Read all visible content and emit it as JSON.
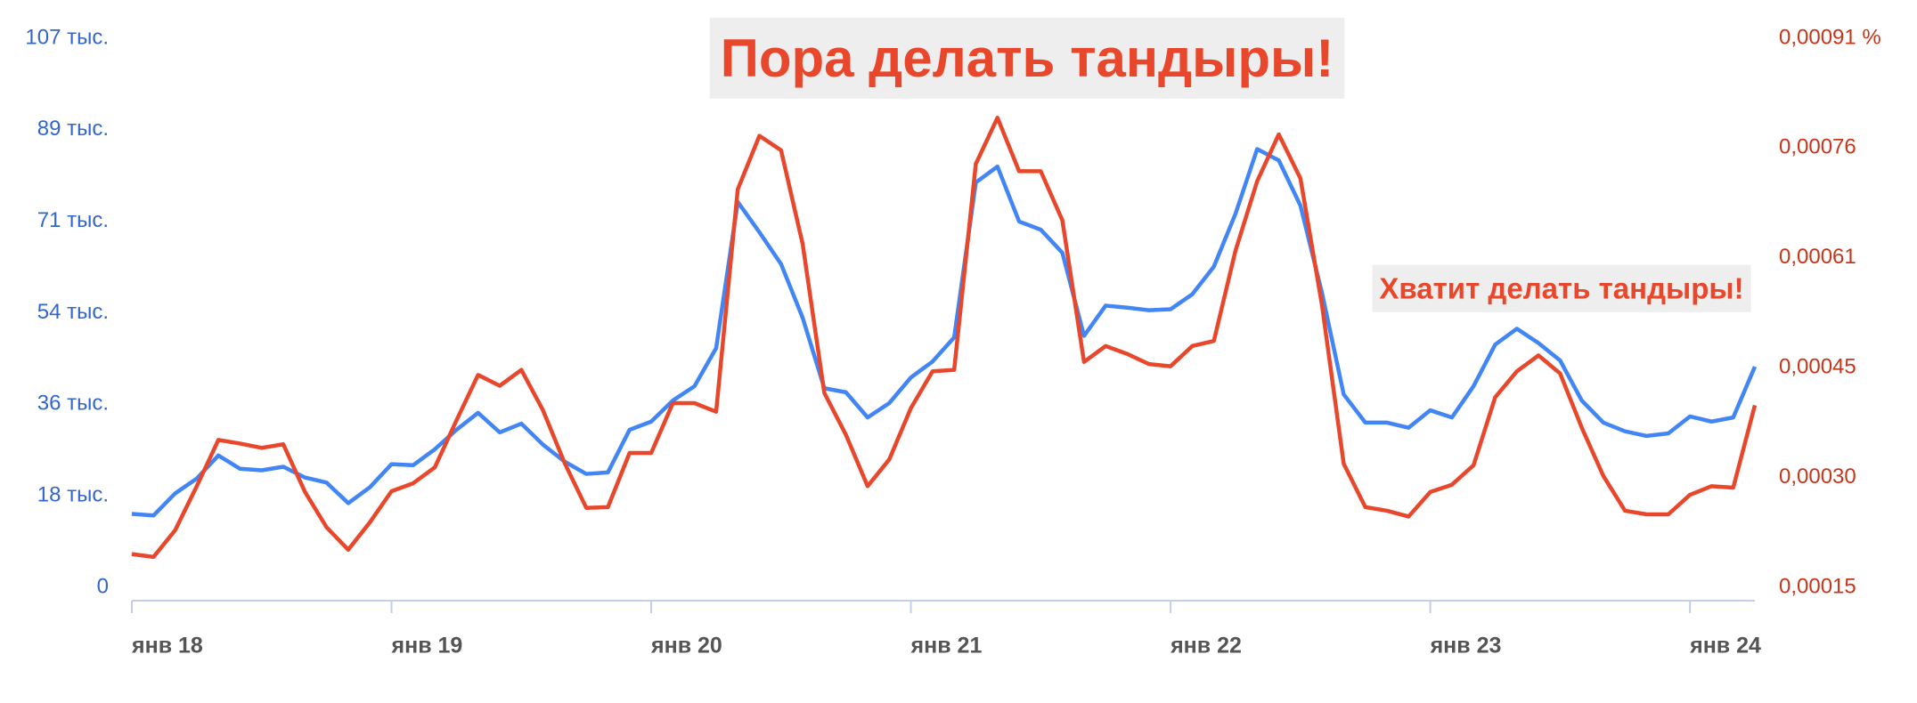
{
  "chart_data": {
    "type": "line",
    "title": "Пора делать тандыры!",
    "annotations": [
      "Хватит делать тандыры!"
    ],
    "x": [
      "2018-01",
      "2018-02",
      "2018-03",
      "2018-04",
      "2018-05",
      "2018-06",
      "2018-07",
      "2018-08",
      "2018-09",
      "2018-10",
      "2018-11",
      "2018-12",
      "2019-01",
      "2019-02",
      "2019-03",
      "2019-04",
      "2019-05",
      "2019-06",
      "2019-07",
      "2019-08",
      "2019-09",
      "2019-10",
      "2019-11",
      "2019-12",
      "2020-01",
      "2020-02",
      "2020-03",
      "2020-04",
      "2020-05",
      "2020-06",
      "2020-07",
      "2020-08",
      "2020-09",
      "2020-10",
      "2020-11",
      "2020-12",
      "2021-01",
      "2021-02",
      "2021-03",
      "2021-04",
      "2021-05",
      "2021-06",
      "2021-07",
      "2021-08",
      "2021-09",
      "2021-10",
      "2021-11",
      "2021-12",
      "2022-01",
      "2022-02",
      "2022-03",
      "2022-04",
      "2022-05",
      "2022-06",
      "2022-07",
      "2022-08",
      "2022-09",
      "2022-10",
      "2022-11",
      "2022-12",
      "2023-01",
      "2023-02",
      "2023-03",
      "2023-04",
      "2023-05",
      "2023-06",
      "2023-07",
      "2023-08",
      "2023-09",
      "2023-10",
      "2023-11",
      "2023-12",
      "2024-01",
      "2024-02",
      "2024-03",
      "2024-04"
    ],
    "xticks": [
      {
        "value": "2018-01",
        "label": "янв 18"
      },
      {
        "value": "2019-01",
        "label": "янв 19"
      },
      {
        "value": "2020-01",
        "label": "янв 20"
      },
      {
        "value": "2021-01",
        "label": "янв 21"
      },
      {
        "value": "2022-01",
        "label": "янв 22"
      },
      {
        "value": "2023-01",
        "label": "янв 23"
      },
      {
        "value": "2024-01",
        "label": "янв 24"
      }
    ],
    "ylim": [
      0,
      107000
    ],
    "yticks": [
      0,
      {
        "value": 17800,
        "label": "18 тыс."
      },
      {
        "value": 35700,
        "label": "36 тыс."
      },
      {
        "value": 53500,
        "label": "54 тыс."
      },
      {
        "value": 71300,
        "label": "71 тыс."
      },
      {
        "value": 89200,
        "label": "89 тыс."
      },
      {
        "value": 107000,
        "label": "107 тыс."
      }
    ],
    "y2lim": [
      0.00015,
      0.00091
    ],
    "y2ticks": [
      {
        "value": 0.00015,
        "label": "0,00015"
      },
      {
        "value": 0.000302,
        "label": "0,00030"
      },
      {
        "value": 0.000454,
        "label": "0,00045"
      },
      {
        "value": 0.000606,
        "label": "0,00061"
      },
      {
        "value": 0.000758,
        "label": "0,00076"
      },
      {
        "value": 0.00091,
        "label": "0,00091 %"
      }
    ],
    "series": [
      {
        "color": "#4285f4",
        "values": [
          14300,
          14000,
          18300,
          21200,
          25700,
          23100,
          22800,
          23500,
          21400,
          20400,
          16400,
          19500,
          24000,
          23800,
          26900,
          30700,
          34000,
          30200,
          31900,
          27800,
          24500,
          22100,
          22400,
          30700,
          32300,
          36400,
          39200,
          46600,
          75100,
          69200,
          63000,
          52500,
          38800,
          38000,
          33100,
          35900,
          40900,
          44000,
          48700,
          78900,
          82000,
          71300,
          69700,
          65200,
          49000,
          54900,
          54500,
          54000,
          54200,
          57100,
          62500,
          72800,
          85400,
          83200,
          74400,
          57300,
          37600,
          32100,
          32100,
          31100,
          34500,
          33100,
          39200,
          47300,
          50400,
          47600,
          44200,
          36400,
          32100,
          30400,
          29500,
          30000,
          33300,
          32300,
          33100,
          43000
        ]
      },
      {
        "color": "#e8472b",
        "axis": "y2",
        "values": [
          0.000196,
          0.000192,
          0.000229,
          0.00029,
          0.000354,
          0.000349,
          0.000343,
          0.000348,
          0.000282,
          0.000233,
          0.000202,
          0.00024,
          0.000283,
          0.000294,
          0.000316,
          0.000381,
          0.000444,
          0.000429,
          0.000451,
          0.000395,
          0.000322,
          0.00026,
          0.000261,
          0.000336,
          0.000336,
          0.000405,
          0.000405,
          0.000393,
          0.000701,
          0.000775,
          0.000755,
          0.000625,
          0.000419,
          0.000361,
          0.00029,
          0.000327,
          0.000398,
          0.000449,
          0.000451,
          0.000736,
          0.0008,
          0.000726,
          0.000726,
          0.000658,
          0.000462,
          0.000484,
          0.000473,
          0.000459,
          0.000456,
          0.000484,
          0.000491,
          0.000616,
          0.000712,
          0.000777,
          0.000716,
          0.00054,
          0.000321,
          0.000261,
          0.000256,
          0.000248,
          0.000282,
          0.000292,
          0.000319,
          0.000413,
          0.000449,
          0.000471,
          0.000446,
          0.000371,
          0.000304,
          0.000256,
          0.000251,
          0.000251,
          0.000278,
          0.00029,
          0.000288,
          0.000402
        ]
      }
    ]
  }
}
